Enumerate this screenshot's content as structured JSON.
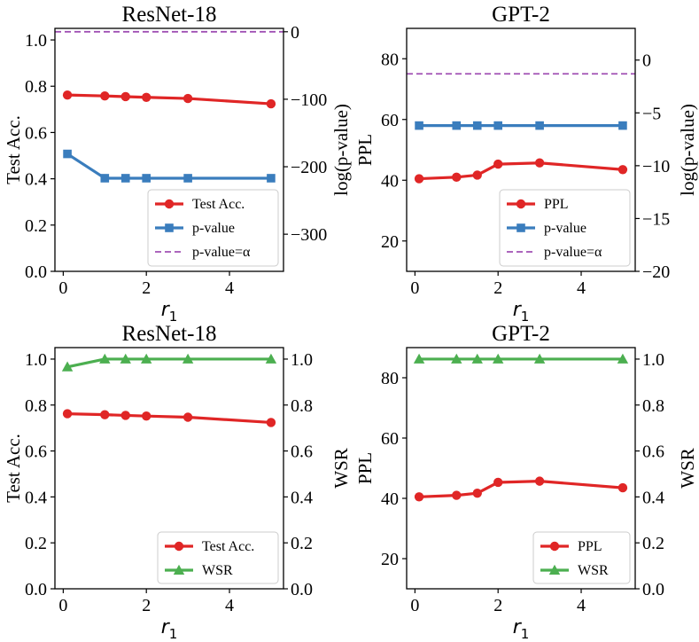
{
  "colors": {
    "red": "#e02626",
    "blue": "#3a7dbd",
    "green": "#4caf50",
    "purple": "#a050b4"
  },
  "chart_data": [
    {
      "type": "line",
      "title": "ResNet-18",
      "xlabel": "r",
      "xlabel_sub": "1",
      "ylabel": "Test Acc.",
      "y2label": "log(p-value)",
      "xlim": [
        -0.2,
        5.3
      ],
      "ylim": [
        0,
        1.05
      ],
      "y2lim": [
        -355,
        5
      ],
      "xticks": [
        0,
        2,
        4
      ],
      "yticks": [
        0.0,
        0.2,
        0.4,
        0.6,
        0.8,
        1.0
      ],
      "y2ticks": [
        0,
        -100,
        -200,
        -300
      ],
      "yticks_labels": [
        "0.0",
        "0.2",
        "0.4",
        "0.6",
        "0.8",
        "1.0"
      ],
      "y2ticks_labels": [
        "0",
        "−100",
        "−200",
        "−300"
      ],
      "legend_position": "bottom-right",
      "series": [
        {
          "name": "Test Acc.",
          "axis": "left",
          "color": "red",
          "marker": "circle",
          "x": [
            0.1,
            1,
            1.5,
            2,
            3,
            5
          ],
          "y": [
            0.762,
            0.758,
            0.755,
            0.752,
            0.747,
            0.724
          ]
        },
        {
          "name": "p-value",
          "axis": "right",
          "color": "blue",
          "marker": "square",
          "x": [
            0.1,
            1,
            1.5,
            2,
            3,
            5
          ],
          "y": [
            -181,
            -217,
            -217,
            -217,
            -217,
            -217
          ]
        },
        {
          "name": "p-value=α",
          "axis": "right",
          "color": "purple",
          "style": "dashed",
          "hline": 0
        }
      ]
    },
    {
      "type": "line",
      "title": "GPT-2",
      "xlabel": "r",
      "xlabel_sub": "1",
      "ylabel": "PPL",
      "y2label": "log(p-value)",
      "xlim": [
        -0.2,
        5.3
      ],
      "ylim": [
        10,
        90
      ],
      "y2lim": [
        -20,
        3
      ],
      "xticks": [
        0,
        2,
        4
      ],
      "yticks": [
        20,
        40,
        60,
        80
      ],
      "y2ticks": [
        0,
        -5,
        -10,
        -15,
        -20
      ],
      "yticks_labels": [
        "20",
        "40",
        "60",
        "80"
      ],
      "y2ticks_labels": [
        "0",
        "−5",
        "−10",
        "−15",
        "−20"
      ],
      "legend_position": "bottom-right",
      "series": [
        {
          "name": "PPL",
          "axis": "left",
          "color": "red",
          "marker": "circle",
          "x": [
            0.1,
            1,
            1.5,
            2,
            3,
            5
          ],
          "y": [
            40.5,
            41.0,
            41.7,
            45.3,
            45.7,
            43.5
          ]
        },
        {
          "name": "p-value",
          "axis": "right",
          "color": "blue",
          "marker": "square",
          "x": [
            0.1,
            1,
            1.5,
            2,
            3,
            5
          ],
          "y": [
            -6.2,
            -6.2,
            -6.2,
            -6.2,
            -6.2,
            -6.2
          ]
        },
        {
          "name": "p-value=α",
          "axis": "right",
          "color": "purple",
          "style": "dashed",
          "hline": -1.3
        }
      ]
    },
    {
      "type": "line",
      "title": "ResNet-18",
      "xlabel": "r",
      "xlabel_sub": "1",
      "ylabel": "Test Acc.",
      "y2label": "WSR",
      "xlim": [
        -0.2,
        5.3
      ],
      "ylim": [
        0,
        1.05
      ],
      "y2lim": [
        0,
        1.05
      ],
      "xticks": [
        0,
        2,
        4
      ],
      "yticks": [
        0.0,
        0.2,
        0.4,
        0.6,
        0.8,
        1.0
      ],
      "y2ticks": [
        0.0,
        0.2,
        0.4,
        0.6,
        0.8,
        1.0
      ],
      "yticks_labels": [
        "0.0",
        "0.2",
        "0.4",
        "0.6",
        "0.8",
        "1.0"
      ],
      "y2ticks_labels": [
        "0.0",
        "0.2",
        "0.4",
        "0.6",
        "0.8",
        "1.0"
      ],
      "legend_position": "bottom-right",
      "series": [
        {
          "name": "Test Acc.",
          "axis": "left",
          "color": "red",
          "marker": "circle",
          "x": [
            0.1,
            1,
            1.5,
            2,
            3,
            5
          ],
          "y": [
            0.762,
            0.758,
            0.755,
            0.752,
            0.747,
            0.724
          ]
        },
        {
          "name": "WSR",
          "axis": "right",
          "color": "green",
          "marker": "triangle",
          "x": [
            0.1,
            1,
            1.5,
            2,
            3,
            5
          ],
          "y": [
            0.966,
            1.0,
            1.0,
            1.0,
            1.0,
            1.0
          ]
        }
      ]
    },
    {
      "type": "line",
      "title": "GPT-2",
      "xlabel": "r",
      "xlabel_sub": "1",
      "ylabel": "PPL",
      "y2label": "WSR",
      "xlim": [
        -0.2,
        5.3
      ],
      "ylim": [
        10,
        90
      ],
      "y2lim": [
        0,
        1.05
      ],
      "xticks": [
        0,
        2,
        4
      ],
      "yticks": [
        20,
        40,
        60,
        80
      ],
      "y2ticks": [
        0.0,
        0.2,
        0.4,
        0.6,
        0.8,
        1.0
      ],
      "yticks_labels": [
        "20",
        "40",
        "60",
        "80"
      ],
      "y2ticks_labels": [
        "0.0",
        "0.2",
        "0.4",
        "0.6",
        "0.8",
        "1.0"
      ],
      "legend_position": "bottom-right",
      "series": [
        {
          "name": "PPL",
          "axis": "left",
          "color": "red",
          "marker": "circle",
          "x": [
            0.1,
            1,
            1.5,
            2,
            3,
            5
          ],
          "y": [
            40.5,
            41.0,
            41.7,
            45.3,
            45.7,
            43.5
          ]
        },
        {
          "name": "WSR",
          "axis": "right",
          "color": "green",
          "marker": "triangle",
          "x": [
            0.1,
            1,
            1.5,
            2,
            3,
            5
          ],
          "y": [
            1.0,
            1.0,
            1.0,
            1.0,
            1.0,
            1.0
          ]
        }
      ]
    }
  ]
}
